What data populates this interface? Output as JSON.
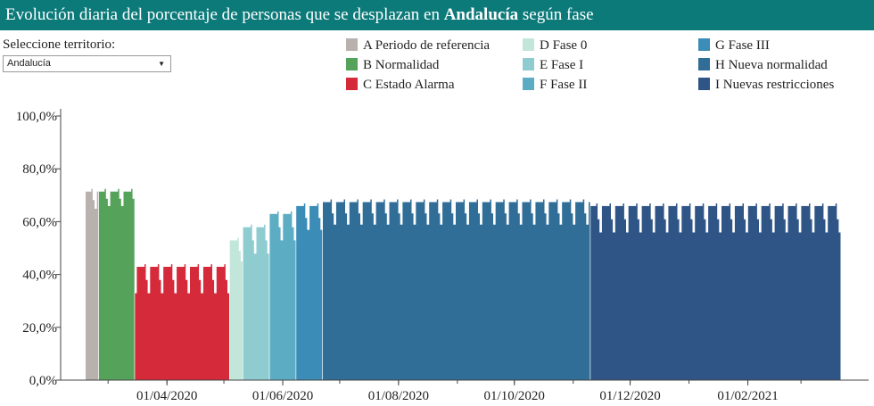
{
  "header": {
    "title_prefix": "Evolución diaria del porcentaje de personas que se desplazan en",
    "title_region": "Andalucía",
    "title_suffix": "según fase"
  },
  "selector": {
    "label": "Seleccione territorio:",
    "value": "Andalucía"
  },
  "legend": [
    {
      "label": "A Periodo de referencia",
      "color": "#b8b1ae"
    },
    {
      "label": "B Normalidad",
      "color": "#55a35a"
    },
    {
      "label": "C Estado Alarma",
      "color": "#d42a3a"
    },
    {
      "label": "D Fase 0",
      "color": "#c3e6da"
    },
    {
      "label": "E Fase I",
      "color": "#8fccd0"
    },
    {
      "label": "F Fase II",
      "color": "#5cadc3"
    },
    {
      "label": "G Fase III",
      "color": "#3b8cb6"
    },
    {
      "label": "H Nueva normalidad",
      "color": "#306e98"
    },
    {
      "label": "I Nuevas restricciones",
      "color": "#2f5586"
    }
  ],
  "chart_data": {
    "type": "area",
    "title": "Evolución diaria del porcentaje de personas que se desplazan en Andalucía según fase",
    "xlabel": "",
    "ylabel": "",
    "ylim": [
      0,
      100
    ],
    "y_ticks": [
      "0,0%",
      "20,0%",
      "40,0%",
      "60,0%",
      "80,0%",
      "100,0%"
    ],
    "x_ticks": [
      {
        "date": "2020-04-01",
        "label": "01/04/2020"
      },
      {
        "date": "2020-06-01",
        "label": "01/06/2020"
      },
      {
        "date": "2020-08-01",
        "label": "01/08/2020"
      },
      {
        "date": "2020-10-01",
        "label": "01/10/2020"
      },
      {
        "date": "2020-12-01",
        "label": "01/12/2020"
      },
      {
        "date": "2021-02-01",
        "label": "01/02/2021"
      }
    ],
    "x_range": [
      "2020-02-05",
      "2021-03-31"
    ],
    "grid": false,
    "series": [
      {
        "name": "A Periodo de referencia",
        "start": "2020-02-18",
        "end": "2020-02-24",
        "weekday": 71.5,
        "weekend": 65
      },
      {
        "name": "B Normalidad",
        "start": "2020-02-25",
        "end": "2020-03-14",
        "weekday": 71.5,
        "weekend": 66
      },
      {
        "name": "C Estado Alarma",
        "start": "2020-03-15",
        "end": "2020-05-03",
        "weekday": 43,
        "weekend": 33
      },
      {
        "name": "D Fase 0",
        "start": "2020-05-04",
        "end": "2020-05-10",
        "weekday": 53,
        "weekend": 45
      },
      {
        "name": "E Fase I",
        "start": "2020-05-11",
        "end": "2020-05-24",
        "weekday": 58,
        "weekend": 48
      },
      {
        "name": "F Fase II",
        "start": "2020-05-25",
        "end": "2020-06-07",
        "weekday": 63,
        "weekend": 53
      },
      {
        "name": "G Fase III",
        "start": "2020-06-08",
        "end": "2020-06-21",
        "weekday": 66,
        "weekend": 57
      },
      {
        "name": "H Nueva normalidad",
        "start": "2020-06-22",
        "end": "2020-11-09",
        "weekday": 67.5,
        "weekend": 59
      },
      {
        "name": "I Nuevas restricciones",
        "start": "2020-11-10",
        "end": "2021-03-21",
        "weekday": 66,
        "weekend": 56
      }
    ]
  }
}
